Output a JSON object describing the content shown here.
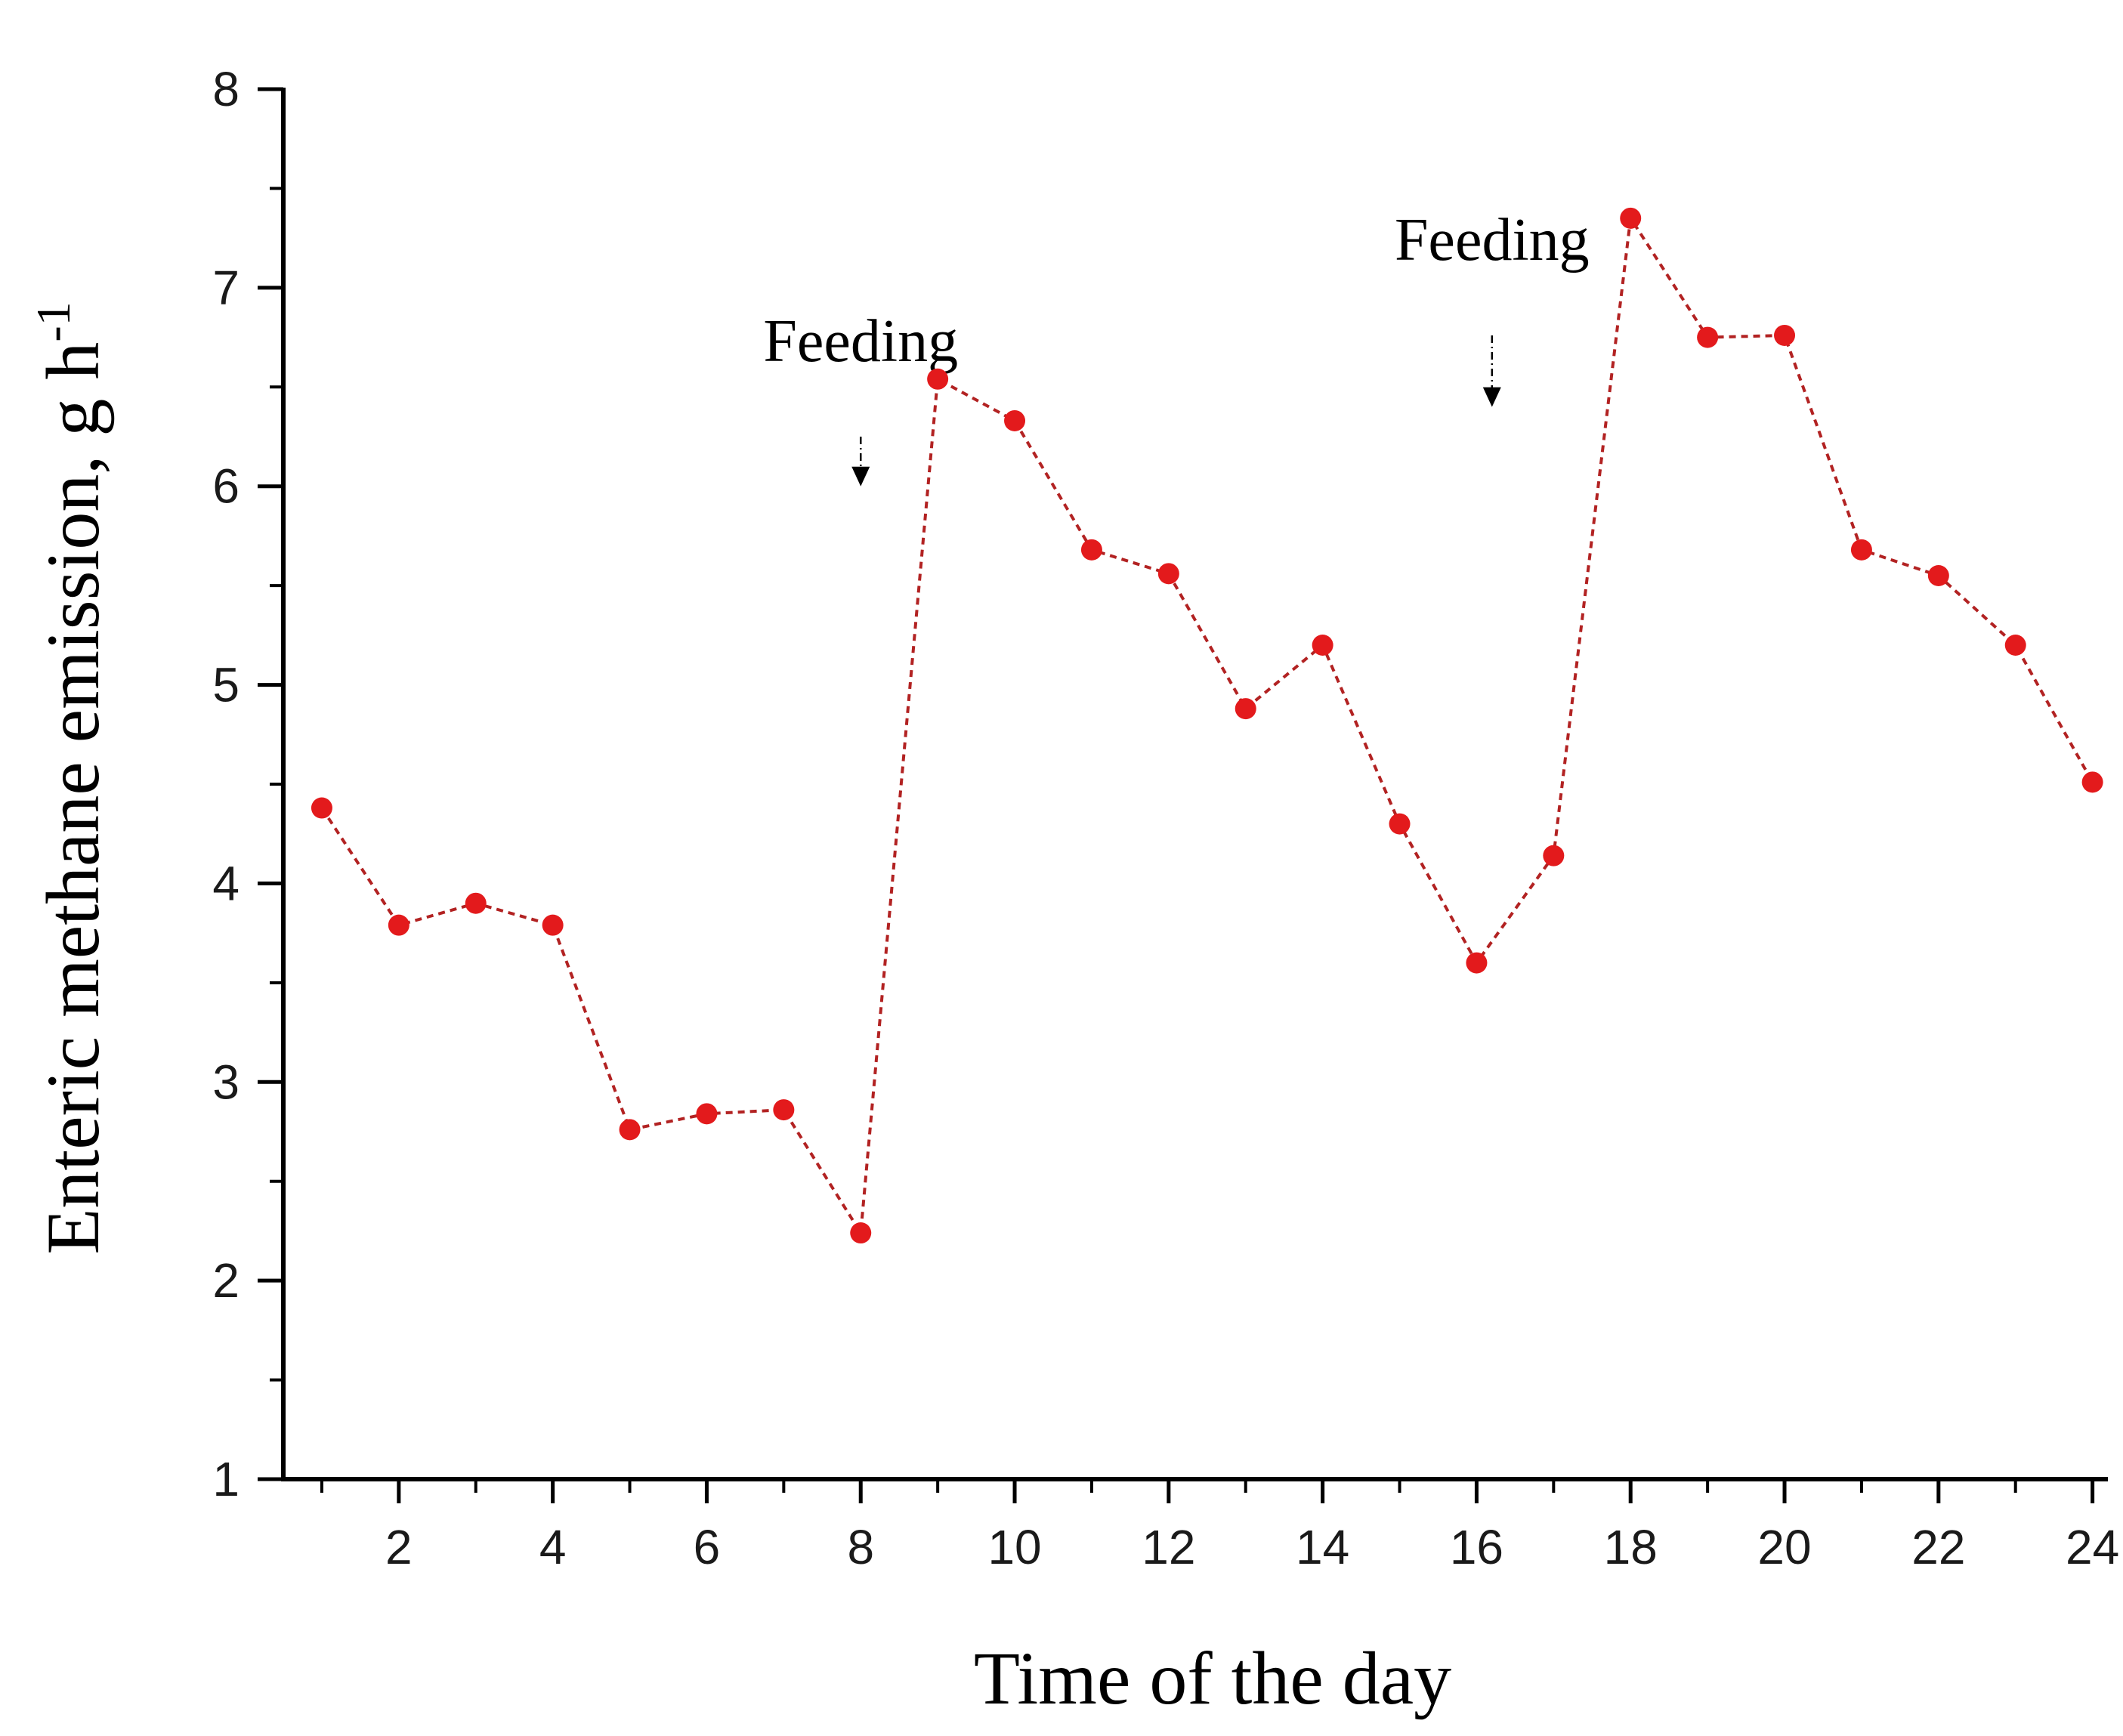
{
  "chart_data": {
    "type": "line",
    "title": "",
    "xlabel": "Time of the day",
    "ylabel": "Enteric methane emission, g h",
    "ylabel_superscript": "-1",
    "xlim": [
      0.5,
      24.2
    ],
    "ylim": [
      1,
      8
    ],
    "x_ticks": [
      2,
      4,
      6,
      8,
      10,
      12,
      14,
      16,
      18,
      20,
      22,
      24
    ],
    "y_ticks": [
      1,
      2,
      3,
      4,
      5,
      6,
      7,
      8
    ],
    "grid": false,
    "legend": "none",
    "series": [
      {
        "color": "#e31a1c",
        "line_color": "#b22222",
        "line_style": "dotted",
        "x": [
          1,
          2,
          3,
          4,
          5,
          6,
          7,
          8,
          9,
          10,
          11,
          12,
          13,
          14,
          15,
          16,
          17,
          18,
          19,
          20,
          21,
          22,
          23,
          24
        ],
        "y": [
          4.38,
          3.79,
          3.9,
          3.79,
          2.76,
          2.84,
          2.86,
          2.24,
          6.54,
          6.33,
          5.68,
          5.56,
          4.88,
          5.2,
          4.3,
          3.6,
          4.14,
          7.35,
          6.75,
          6.76,
          5.68,
          5.55,
          5.2,
          4.51
        ]
      }
    ],
    "annotations": [
      {
        "text": "Feeding",
        "x": 8.0,
        "arrow_top_y": 6.25,
        "arrow_tip_y": 6.0
      },
      {
        "text": "Feeding",
        "x": 16.2,
        "arrow_top_y": 6.76,
        "arrow_tip_y": 6.4
      }
    ]
  }
}
